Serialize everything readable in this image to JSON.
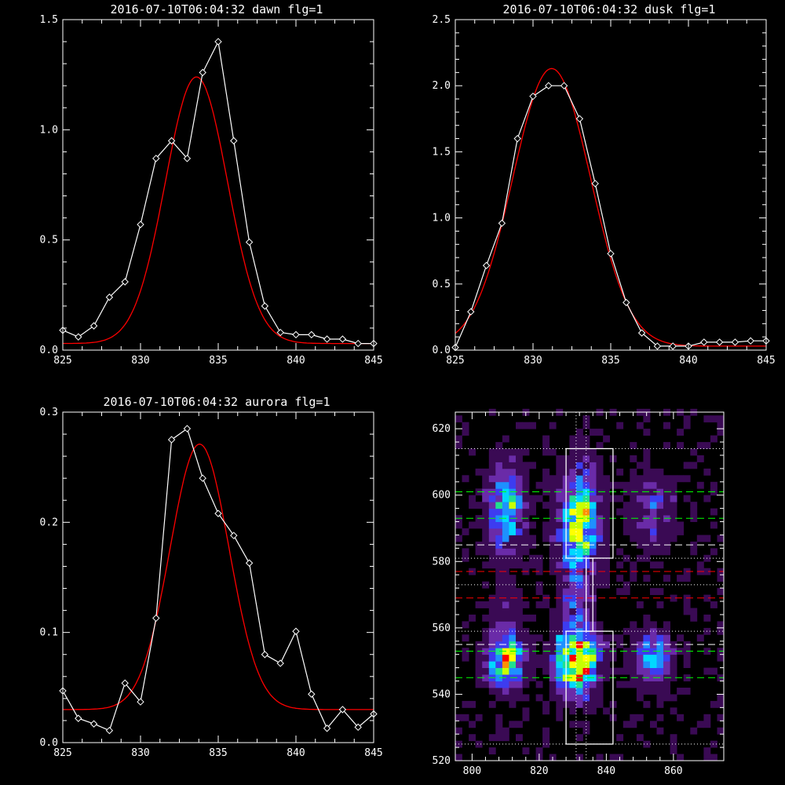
{
  "chart_data": [
    {
      "type": "line",
      "title": "2016-07-10T06:04:32 dawn flg=1",
      "xlim": [
        825,
        845
      ],
      "ylim": [
        0,
        1.5
      ],
      "xticks": [
        825,
        830,
        835,
        840,
        845
      ],
      "yticks": [
        0.0,
        0.5,
        1.0,
        1.5
      ],
      "xtick_labels": [
        "825",
        "830",
        "835",
        "840",
        "845"
      ],
      "ytick_labels": [
        "0.0",
        "0.5",
        "1.0",
        "1.5"
      ],
      "series": [
        {
          "marker": "diamond",
          "color": "#ffffff",
          "x": [
            825,
            826,
            827,
            828,
            829,
            830,
            831,
            832,
            833,
            834,
            835,
            836,
            837,
            838,
            839,
            840,
            841,
            842,
            843,
            844,
            845
          ],
          "y": [
            0.09,
            0.06,
            0.11,
            0.24,
            0.31,
            0.57,
            0.87,
            0.95,
            0.87,
            1.26,
            1.4,
            0.95,
            0.49,
            0.2,
            0.08,
            0.07,
            0.07,
            0.05,
            0.05,
            0.03,
            0.03
          ]
        },
        {
          "marker": "none",
          "color": "#ff0000",
          "fit": {
            "kind": "gaussian",
            "amplitude": 1.21,
            "center": 833.6,
            "sigma": 2.0,
            "offset": 0.03
          }
        }
      ]
    },
    {
      "type": "line",
      "title": "2016-07-10T06:04:32 dusk flg=1",
      "xlim": [
        825,
        845
      ],
      "ylim": [
        0,
        2.5
      ],
      "xticks": [
        825,
        830,
        835,
        840,
        845
      ],
      "yticks": [
        0.0,
        0.5,
        1.0,
        1.5,
        2.0,
        2.5
      ],
      "xtick_labels": [
        "825",
        "830",
        "835",
        "840",
        "845"
      ],
      "ytick_labels": [
        "0.0",
        "0.5",
        "1.0",
        "1.5",
        "2.0",
        "2.5"
      ],
      "series": [
        {
          "marker": "diamond",
          "color": "#ffffff",
          "x": [
            825,
            826,
            827,
            828,
            829,
            830,
            831,
            832,
            833,
            834,
            835,
            836,
            837,
            838,
            839,
            840,
            841,
            842,
            843,
            844,
            845
          ],
          "y": [
            0.02,
            0.29,
            0.64,
            0.96,
            1.6,
            1.92,
            2.0,
            2.0,
            1.75,
            1.26,
            0.73,
            0.36,
            0.13,
            0.03,
            0.03,
            0.03,
            0.06,
            0.06,
            0.06,
            0.07,
            0.07
          ]
        },
        {
          "marker": "none",
          "color": "#ff0000",
          "fit": {
            "kind": "gaussian",
            "amplitude": 2.1,
            "center": 831.2,
            "sigma": 2.5,
            "offset": 0.03
          }
        }
      ]
    },
    {
      "type": "line",
      "title": "2016-07-10T06:04:32 aurora flg=1",
      "xlim": [
        825,
        845
      ],
      "ylim": [
        0,
        0.3
      ],
      "xticks": [
        825,
        830,
        835,
        840,
        845
      ],
      "yticks": [
        0.0,
        0.1,
        0.2,
        0.3
      ],
      "xtick_labels": [
        "825",
        "830",
        "835",
        "840",
        "845"
      ],
      "ytick_labels": [
        "0.0",
        "0.1",
        "0.2",
        "0.3"
      ],
      "series": [
        {
          "marker": "diamond",
          "color": "#ffffff",
          "x": [
            825,
            826,
            827,
            828,
            829,
            830,
            831,
            832,
            833,
            834,
            835,
            836,
            837,
            838,
            839,
            840,
            841,
            842,
            843,
            844,
            845
          ],
          "y": [
            0.047,
            0.022,
            0.017,
            0.011,
            0.054,
            0.037,
            0.113,
            0.275,
            0.285,
            0.24,
            0.208,
            0.188,
            0.163,
            0.08,
            0.072,
            0.101,
            0.044,
            0.013,
            0.03,
            0.014,
            0.026
          ]
        },
        {
          "marker": "none",
          "color": "#ff0000",
          "fit": {
            "kind": "gaussian",
            "amplitude": 0.241,
            "center": 833.8,
            "sigma": 1.9,
            "offset": 0.03
          }
        }
      ]
    },
    {
      "type": "heatmap",
      "title": "",
      "xlim": [
        795,
        875
      ],
      "ylim": [
        520,
        625
      ],
      "xticks": [
        800,
        820,
        840,
        860
      ],
      "yticks": [
        520,
        540,
        560,
        580,
        600,
        620
      ],
      "xtick_labels": [
        "800",
        "820",
        "840",
        "860"
      ],
      "ytick_labels": [
        "520",
        "540",
        "560",
        "580",
        "600",
        "620"
      ],
      "colormap": [
        "#000000",
        "#3a0a54",
        "#6a2ba8",
        "#3d3cf0",
        "#1e90ff",
        "#00d8ff",
        "#20e090",
        "#c8ff00",
        "#ffff00",
        "#ff9000",
        "#ff0000"
      ],
      "blobs": [
        {
          "x": 810,
          "y": 596,
          "sx": 3.5,
          "sy": 8,
          "peak": 0.5
        },
        {
          "x": 832,
          "y": 592,
          "sx": 4,
          "sy": 10,
          "peak": 0.62
        },
        {
          "x": 810,
          "y": 551,
          "sx": 3.5,
          "sy": 5.5,
          "peak": 0.68
        },
        {
          "x": 831,
          "y": 550,
          "sx": 4,
          "sy": 6,
          "peak": 1.0
        },
        {
          "x": 854,
          "y": 595,
          "sx": 4,
          "sy": 7,
          "peak": 0.22
        },
        {
          "x": 854,
          "y": 551,
          "sx": 3.5,
          "sy": 5,
          "peak": 0.42
        },
        {
          "x": 831,
          "y": 568,
          "sx": 3,
          "sy": 7,
          "peak": 0.2
        },
        {
          "x": 810,
          "y": 568,
          "sx": 3,
          "sy": 6,
          "peak": 0.1
        }
      ],
      "boxes": [
        {
          "x0": 828,
          "x1": 842,
          "y0": 581,
          "y1": 614
        },
        {
          "x0": 828,
          "x1": 842,
          "y0": 525,
          "y1": 559
        },
        {
          "x0": 834,
          "x1": 836,
          "y0": 559,
          "y1": 581
        }
      ],
      "hlines": [
        {
          "y": 614,
          "color": "#ffffff",
          "dash": "dot"
        },
        {
          "y": 581,
          "color": "#ffffff",
          "dash": "dot"
        },
        {
          "y": 559,
          "color": "#ffffff",
          "dash": "dot"
        },
        {
          "y": 525,
          "color": "#ffffff",
          "dash": "dot"
        },
        {
          "y": 573,
          "color": "#ffffff",
          "dash": "dot"
        },
        {
          "y": 601,
          "color": "#00ff00",
          "dash": "dash"
        },
        {
          "y": 593,
          "color": "#00ff00",
          "dash": "dash"
        },
        {
          "y": 553,
          "color": "#00ff00",
          "dash": "dash"
        },
        {
          "y": 545,
          "color": "#00ff00",
          "dash": "dash"
        },
        {
          "y": 585,
          "color": "#ffffff",
          "dash": "dash"
        },
        {
          "y": 555,
          "color": "#ffffff",
          "dash": "dash"
        },
        {
          "y": 577,
          "color": "#ff0000",
          "dash": "dash"
        },
        {
          "y": 569,
          "color": "#ff0000",
          "dash": "dash"
        }
      ],
      "vlines": [
        {
          "x": 831,
          "color": "#ffffff",
          "dash": "dot"
        },
        {
          "x": 834,
          "color": "#ffffff",
          "dash": "dot"
        }
      ]
    }
  ]
}
